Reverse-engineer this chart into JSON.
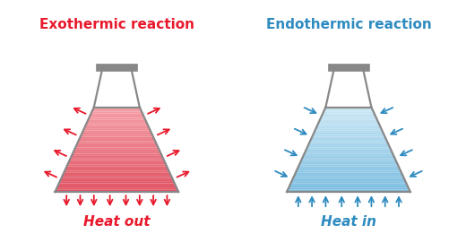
{
  "title_exo": "Exothermic reaction",
  "title_endo": "Endothermic reaction",
  "label_exo": "Heat out",
  "label_endo": "Heat in",
  "color_exo": "#e8192c",
  "color_endo": "#2e8bc0",
  "flask_outline": "#888888",
  "bg_color": "#ffffff",
  "liquid_exo_top": "#f5a0a8",
  "liquid_exo_bot": "#e05060",
  "liquid_endo_top": "#cce8f5",
  "liquid_endo_bot": "#7bbde0",
  "title_fontsize": 11,
  "label_fontsize": 11
}
